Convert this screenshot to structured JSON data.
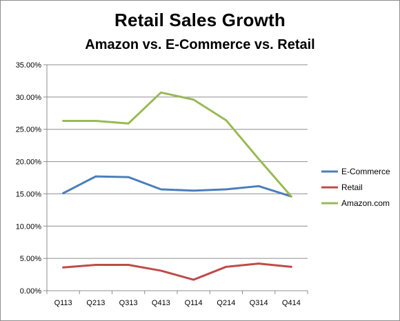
{
  "chart_data": {
    "type": "line",
    "title": "Retail Sales Growth",
    "subtitle": "Amazon vs. E-Commerce vs. Retail",
    "xlabel": "",
    "ylabel": "",
    "categories": [
      "Q113",
      "Q213",
      "Q313",
      "Q413",
      "Q114",
      "Q214",
      "Q314",
      "Q414"
    ],
    "yticks": [
      "0.00%",
      "5.00%",
      "10.00%",
      "15.00%",
      "20.00%",
      "25.00%",
      "30.00%",
      "35.00%"
    ],
    "ylim": [
      0,
      35
    ],
    "grid": true,
    "legend_position": "right",
    "series": [
      {
        "name": "E-Commerce",
        "color": "#4a7ebb",
        "values": [
          15.1,
          17.7,
          17.6,
          15.7,
          15.5,
          15.7,
          16.2,
          14.6
        ]
      },
      {
        "name": "Retail",
        "color": "#be4b48",
        "values": [
          3.6,
          4.0,
          4.0,
          3.1,
          1.7,
          3.7,
          4.2,
          3.7
        ]
      },
      {
        "name": "Amazon.com",
        "color": "#98b954",
        "values": [
          26.3,
          26.3,
          25.9,
          30.7,
          29.6,
          26.4,
          20.4,
          14.6
        ]
      }
    ]
  }
}
